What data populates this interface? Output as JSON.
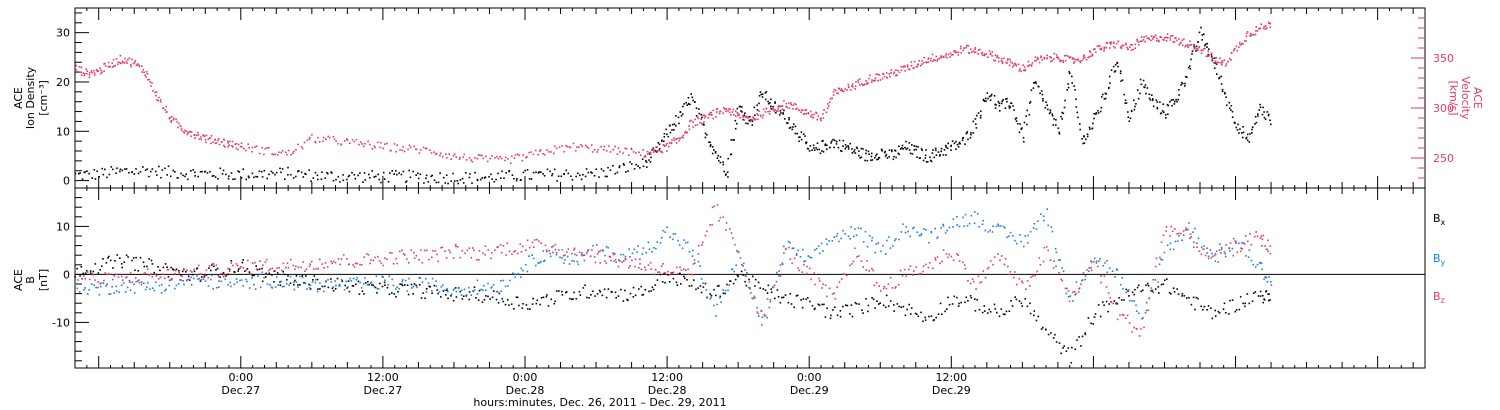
{
  "colors": {
    "black": "#000000",
    "pink": "#e23b67",
    "blue": "#1a7fe0"
  },
  "chart_data": [
    {
      "type": "scatter",
      "panel": "top",
      "ylabel_left": [
        "ACE",
        "Ion Density",
        "[cm⁻³]"
      ],
      "ylabel_right": [
        "ACE",
        "Velocity",
        "[km/s]"
      ],
      "ylim_left": [
        -1.5,
        35
      ],
      "yticks_left": [
        "0",
        "10",
        "20",
        "30"
      ],
      "ylim_right": [
        220,
        400
      ],
      "yticks_right": [
        "250",
        "300",
        "350"
      ],
      "series": [
        {
          "axis": "left",
          "color": "#000000",
          "x": [
            -14,
            -12,
            -10,
            -8,
            -6,
            -4,
            -2,
            0,
            2,
            4,
            6,
            8,
            10,
            12,
            14,
            16,
            18,
            20,
            22,
            24,
            26,
            28,
            30,
            32,
            34,
            35,
            36,
            37,
            38,
            39,
            40,
            41,
            42,
            43,
            44,
            45,
            46,
            47,
            48,
            49,
            50,
            51,
            52,
            53,
            54,
            55,
            56,
            57,
            58,
            59,
            60,
            61,
            62,
            63,
            64,
            65,
            66,
            67,
            68,
            69,
            70,
            71,
            72,
            73,
            74,
            75,
            76,
            77,
            78,
            79,
            80,
            81,
            82,
            83,
            84,
            85,
            86,
            87
          ],
          "y": [
            1.2,
            1.5,
            2.0,
            2.2,
            1.8,
            1.6,
            1.5,
            1.4,
            1.5,
            1.6,
            1.2,
            1.0,
            1.0,
            0.9,
            1.0,
            0.8,
            0.8,
            0.7,
            0.9,
            1.2,
            1.3,
            1.4,
            1.6,
            2.5,
            3.5,
            6,
            10,
            13,
            17,
            11,
            6,
            2,
            15,
            12,
            18,
            15,
            13,
            10,
            6,
            7,
            8,
            7,
            6,
            5,
            6,
            5,
            7,
            6,
            5,
            6,
            7,
            8,
            12,
            18,
            15,
            16,
            9,
            20,
            15,
            10,
            22,
            8,
            12,
            18,
            25,
            12,
            20,
            16,
            14,
            17,
            23,
            30,
            25,
            18,
            12,
            8,
            15,
            12
          ]
        },
        {
          "axis": "right",
          "color": "#e23b67",
          "x": [
            -14,
            -13,
            -12,
            -11,
            -10,
            -9,
            -8,
            -7,
            -6,
            -5,
            -4,
            -3,
            -2,
            -1,
            0,
            2,
            4,
            6,
            8,
            10,
            12,
            14,
            16,
            18,
            20,
            22,
            24,
            26,
            28,
            30,
            32,
            34,
            35,
            36,
            37,
            38,
            39,
            40,
            41,
            42,
            43,
            44,
            45,
            46,
            47,
            48,
            49,
            50,
            51,
            52,
            53,
            54,
            55,
            56,
            57,
            58,
            59,
            60,
            61,
            62,
            63,
            64,
            65,
            66,
            67,
            68,
            69,
            70,
            71,
            72,
            73,
            74,
            75,
            76,
            77,
            78,
            79,
            80,
            81,
            82,
            83,
            84,
            85,
            86,
            87
          ],
          "y": [
            340,
            335,
            338,
            345,
            350,
            345,
            335,
            310,
            290,
            280,
            275,
            270,
            268,
            265,
            262,
            258,
            255,
            270,
            268,
            265,
            262,
            260,
            258,
            252,
            250,
            248,
            252,
            258,
            262,
            260,
            258,
            255,
            258,
            262,
            270,
            285,
            290,
            295,
            300,
            292,
            290,
            295,
            300,
            305,
            300,
            295,
            290,
            315,
            320,
            325,
            330,
            332,
            335,
            340,
            345,
            350,
            352,
            355,
            360,
            358,
            355,
            350,
            345,
            340,
            348,
            350,
            352,
            348,
            350,
            358,
            362,
            365,
            360,
            368,
            370,
            372,
            368,
            365,
            360,
            350,
            345,
            360,
            375,
            380,
            385
          ]
        }
      ]
    },
    {
      "type": "scatter",
      "panel": "bottom",
      "ylabel_left": [
        "ACE",
        "B",
        "[nT]"
      ],
      "ylim_left": [
        -19.5,
        18
      ],
      "yticks_left": [
        "-10",
        "0",
        "10"
      ],
      "legend": [
        {
          "label": "B",
          "sub": "x",
          "color": "#000000"
        },
        {
          "label": "B",
          "sub": "y",
          "color": "#1a7fe0"
        },
        {
          "label": "B",
          "sub": "z",
          "color": "#e23b67"
        }
      ],
      "series": [
        {
          "name": "Bx",
          "color": "#000000",
          "x": [
            -14,
            -12,
            -10,
            -8,
            -6,
            -4,
            -2,
            0,
            2,
            4,
            6,
            8,
            10,
            12,
            14,
            16,
            18,
            20,
            22,
            24,
            26,
            28,
            30,
            32,
            34,
            36,
            38,
            40,
            42,
            44,
            46,
            48,
            50,
            52,
            54,
            56,
            58,
            60,
            62,
            64,
            66,
            68,
            70,
            72,
            74,
            76,
            78,
            80,
            82,
            84,
            86,
            87
          ],
          "y": [
            1,
            2,
            3,
            2,
            1,
            0,
            1,
            2,
            0,
            -1,
            -1.5,
            -2,
            -2.5,
            -3,
            -3,
            -3.5,
            -4,
            -4,
            -5,
            -6,
            -5,
            -4,
            -3,
            -4,
            -3.5,
            0,
            -2,
            -4,
            0,
            -3,
            -5,
            -6,
            -8,
            -7,
            -5,
            -7,
            -9,
            -5,
            -6,
            -8,
            -5,
            -12,
            -17,
            -8,
            -5,
            -3,
            -2,
            -5,
            -8,
            -6,
            -4,
            -5
          ]
        },
        {
          "name": "By",
          "color": "#1a7fe0",
          "x": [
            -14,
            -12,
            -10,
            -8,
            -6,
            -4,
            -2,
            0,
            2,
            4,
            6,
            8,
            10,
            12,
            14,
            16,
            18,
            20,
            22,
            24,
            26,
            28,
            30,
            32,
            34,
            36,
            38,
            40,
            42,
            44,
            46,
            48,
            50,
            52,
            54,
            56,
            58,
            60,
            62,
            64,
            66,
            68,
            70,
            72,
            74,
            76,
            78,
            80,
            82,
            84,
            86,
            87
          ],
          "y": [
            -2,
            -3,
            -2,
            -2.5,
            -2,
            -1,
            -1.5,
            -2,
            -1,
            -1.5,
            -2,
            -2,
            -2,
            -1.5,
            -2,
            -2,
            -3,
            -2.5,
            -2,
            2,
            5,
            3,
            5,
            4,
            5,
            9,
            5,
            -8,
            4,
            -10,
            6,
            3,
            8,
            9,
            5,
            10,
            8,
            11,
            12,
            9,
            7,
            13,
            -5,
            4,
            0,
            -10,
            5,
            10,
            4,
            7,
            2,
            -2
          ]
        },
        {
          "name": "Bz",
          "color": "#e23b67",
          "x": [
            -14,
            -12,
            -10,
            -8,
            -6,
            -4,
            -2,
            0,
            2,
            4,
            6,
            8,
            10,
            12,
            14,
            16,
            18,
            20,
            22,
            24,
            26,
            28,
            30,
            32,
            34,
            36,
            38,
            40,
            42,
            44,
            46,
            48,
            50,
            52,
            54,
            56,
            58,
            60,
            62,
            64,
            66,
            68,
            70,
            72,
            74,
            76,
            78,
            80,
            82,
            84,
            86,
            87
          ],
          "y": [
            0,
            -1,
            -1,
            0,
            0,
            0.5,
            1,
            1.5,
            2,
            2,
            2.5,
            3,
            3,
            3.5,
            4,
            4,
            5,
            4.5,
            5.5,
            6,
            6,
            5,
            4,
            3,
            2,
            1,
            0,
            14,
            5,
            -10,
            5,
            0,
            -5,
            5,
            -3,
            0,
            2,
            5,
            -2,
            4,
            -3,
            5,
            -5,
            3,
            -8,
            -12,
            10,
            8,
            3,
            6,
            8,
            5
          ]
        }
      ]
    }
  ],
  "x_axis": {
    "range": [
      -14,
      100
    ],
    "ticks": [
      {
        "x": 0,
        "time": "0:00",
        "date": "Dec.27"
      },
      {
        "x": 12,
        "time": "12:00",
        "date": "Dec.27"
      },
      {
        "x": 24,
        "time": "0:00",
        "date": "Dec.28"
      },
      {
        "x": 36,
        "time": "12:00",
        "date": "Dec.28"
      },
      {
        "x": 48,
        "time": "0:00",
        "date": "Dec.29"
      },
      {
        "x": 60,
        "time": "12:00",
        "date": "Dec.29"
      }
    ],
    "xlabel": "hours:minutes, Dec. 26, 2011 – Dec. 29, 2011"
  }
}
